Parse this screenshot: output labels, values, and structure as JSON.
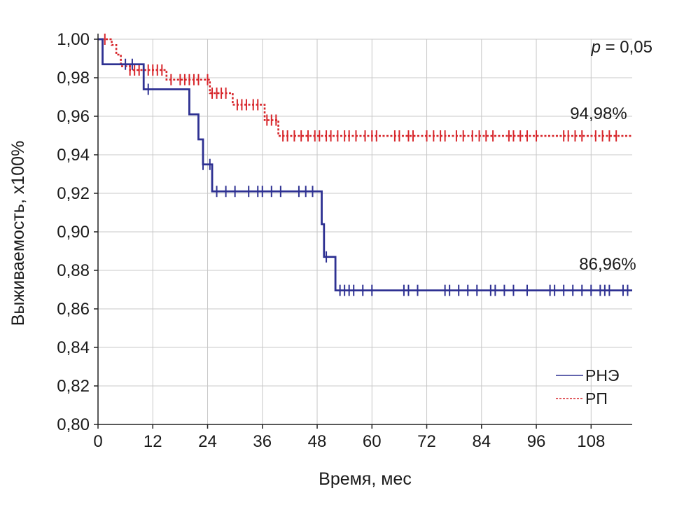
{
  "chart_data": {
    "type": "line",
    "subtype": "kaplan-meier step",
    "xlabel": "Время, мес",
    "ylabel": "Выживаемость, х100%",
    "xlim": [
      0,
      117
    ],
    "ylim": [
      0.8,
      1.0
    ],
    "x_ticks": [
      0,
      12,
      24,
      36,
      48,
      60,
      72,
      84,
      96,
      108
    ],
    "x_tick_labels": [
      "0",
      "12",
      "24",
      "36",
      "48",
      "60",
      "72",
      "84",
      "96",
      "108"
    ],
    "y_ticks": [
      0.8,
      0.82,
      0.84,
      0.86,
      0.88,
      0.9,
      0.92,
      0.94,
      0.96,
      0.98,
      1.0
    ],
    "y_tick_labels": [
      "0,80",
      "0,82",
      "0,84",
      "0,86",
      "0,88",
      "0,90",
      "0,92",
      "0,94",
      "0,96",
      "0,98",
      "1,00"
    ],
    "annotations": {
      "p_label": "p",
      "p_value": " = 0,05",
      "rp_final": "94,98%",
      "rne_final": "86,96%"
    },
    "legend": {
      "position": "bottom-right"
    },
    "series": [
      {
        "name": "РНЭ",
        "color": "#2e3192",
        "style": "solid",
        "steps": [
          [
            0,
            1.0
          ],
          [
            1,
            0.987
          ],
          [
            10,
            0.974
          ],
          [
            20,
            0.961
          ],
          [
            22,
            0.948
          ],
          [
            23,
            0.935
          ],
          [
            25,
            0.921
          ],
          [
            49,
            0.904
          ],
          [
            49.5,
            0.887
          ],
          [
            52,
            0.8696
          ],
          [
            117,
            0.8696
          ]
        ],
        "censored": [
          [
            6,
            0.987
          ],
          [
            7.5,
            0.987
          ],
          [
            11,
            0.974
          ],
          [
            23,
            0.935
          ],
          [
            24.5,
            0.935
          ],
          [
            26,
            0.921
          ],
          [
            28,
            0.921
          ],
          [
            30,
            0.921
          ],
          [
            33,
            0.921
          ],
          [
            35,
            0.921
          ],
          [
            36,
            0.921
          ],
          [
            38,
            0.921
          ],
          [
            40,
            0.921
          ],
          [
            44,
            0.921
          ],
          [
            45.5,
            0.921
          ],
          [
            47,
            0.921
          ],
          [
            50,
            0.887
          ],
          [
            53,
            0.8696
          ],
          [
            54,
            0.8696
          ],
          [
            55,
            0.8696
          ],
          [
            56,
            0.8696
          ],
          [
            58,
            0.8696
          ],
          [
            60,
            0.8696
          ],
          [
            67,
            0.8696
          ],
          [
            68,
            0.8696
          ],
          [
            70,
            0.8696
          ],
          [
            76,
            0.8696
          ],
          [
            77,
            0.8696
          ],
          [
            79,
            0.8696
          ],
          [
            81,
            0.8696
          ],
          [
            83,
            0.8696
          ],
          [
            86,
            0.8696
          ],
          [
            87,
            0.8696
          ],
          [
            89,
            0.8696
          ],
          [
            91,
            0.8696
          ],
          [
            94,
            0.8696
          ],
          [
            99,
            0.8696
          ],
          [
            100,
            0.8696
          ],
          [
            102,
            0.8696
          ],
          [
            104,
            0.8696
          ],
          [
            106,
            0.8696
          ],
          [
            108,
            0.8696
          ],
          [
            110,
            0.8696
          ],
          [
            111,
            0.8696
          ],
          [
            112,
            0.8696
          ],
          [
            115,
            0.8696
          ],
          [
            116,
            0.8696
          ]
        ]
      },
      {
        "name": "РП",
        "color": "#d7262b",
        "style": "dashed",
        "steps": [
          [
            0,
            1.0
          ],
          [
            3,
            0.997
          ],
          [
            4,
            0.992
          ],
          [
            5,
            0.986
          ],
          [
            7,
            0.984
          ],
          [
            15,
            0.979
          ],
          [
            24.5,
            0.972
          ],
          [
            29.5,
            0.966
          ],
          [
            36.5,
            0.958
          ],
          [
            39.5,
            0.9498
          ],
          [
            117,
            0.9498
          ]
        ],
        "censored": [
          [
            1.5,
            1.0
          ],
          [
            7,
            0.984
          ],
          [
            8,
            0.984
          ],
          [
            9,
            0.984
          ],
          [
            10,
            0.984
          ],
          [
            11,
            0.984
          ],
          [
            12,
            0.984
          ],
          [
            13,
            0.984
          ],
          [
            14,
            0.984
          ],
          [
            16,
            0.979
          ],
          [
            18,
            0.979
          ],
          [
            19,
            0.979
          ],
          [
            20,
            0.979
          ],
          [
            21,
            0.979
          ],
          [
            22,
            0.979
          ],
          [
            24,
            0.979
          ],
          [
            25,
            0.972
          ],
          [
            26,
            0.972
          ],
          [
            27,
            0.972
          ],
          [
            28,
            0.972
          ],
          [
            30.5,
            0.966
          ],
          [
            31.5,
            0.966
          ],
          [
            32.5,
            0.966
          ],
          [
            34,
            0.966
          ],
          [
            35,
            0.966
          ],
          [
            37,
            0.958
          ],
          [
            38,
            0.958
          ],
          [
            39,
            0.958
          ],
          [
            40.5,
            0.9498
          ],
          [
            41.5,
            0.9498
          ],
          [
            43,
            0.9498
          ],
          [
            44.5,
            0.9498
          ],
          [
            46,
            0.9498
          ],
          [
            47.5,
            0.9498
          ],
          [
            48.5,
            0.9498
          ],
          [
            50,
            0.9498
          ],
          [
            51,
            0.9498
          ],
          [
            52.5,
            0.9498
          ],
          [
            54,
            0.9498
          ],
          [
            55,
            0.9498
          ],
          [
            56.5,
            0.9498
          ],
          [
            58.5,
            0.9498
          ],
          [
            60,
            0.9498
          ],
          [
            61,
            0.9498
          ],
          [
            65,
            0.9498
          ],
          [
            66,
            0.9498
          ],
          [
            68,
            0.9498
          ],
          [
            69,
            0.9498
          ],
          [
            72,
            0.9498
          ],
          [
            73.5,
            0.9498
          ],
          [
            75,
            0.9498
          ],
          [
            76,
            0.9498
          ],
          [
            78.5,
            0.9498
          ],
          [
            80,
            0.9498
          ],
          [
            82,
            0.9498
          ],
          [
            83.5,
            0.9498
          ],
          [
            85,
            0.9498
          ],
          [
            86.5,
            0.9498
          ],
          [
            90,
            0.9498
          ],
          [
            91,
            0.9498
          ],
          [
            92.5,
            0.9498
          ],
          [
            94,
            0.9498
          ],
          [
            96,
            0.9498
          ],
          [
            102,
            0.9498
          ],
          [
            103,
            0.9498
          ],
          [
            104.5,
            0.9498
          ],
          [
            106,
            0.9498
          ],
          [
            109,
            0.9498
          ],
          [
            110.5,
            0.9498
          ],
          [
            112,
            0.9498
          ],
          [
            113.5,
            0.9498
          ]
        ]
      }
    ]
  }
}
